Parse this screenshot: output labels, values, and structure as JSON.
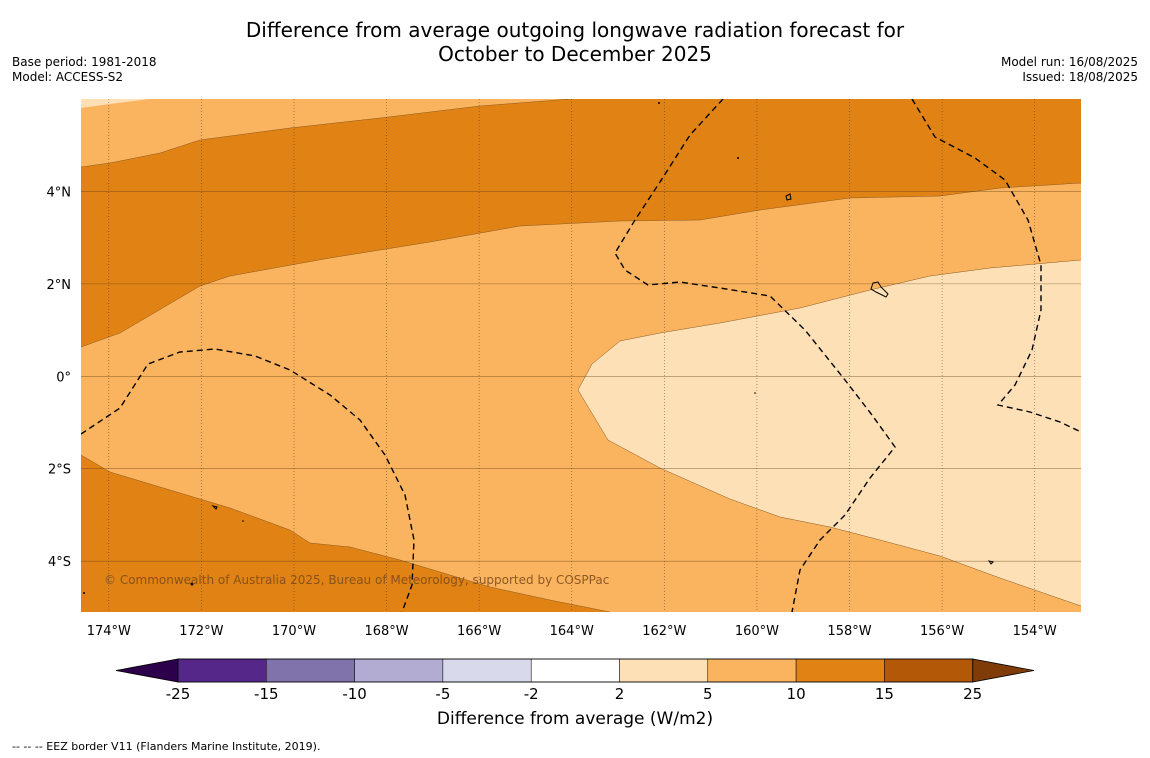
{
  "title": {
    "line1": "Difference from average outgoing longwave radiation forecast for",
    "line2": "October to December 2025"
  },
  "meta_left": {
    "base_period": "Base period: 1981-2018",
    "model": "Model: ACCESS-S2"
  },
  "meta_right": {
    "model_run": "Model run: 16/08/2025",
    "issued": "Issued: 18/08/2025"
  },
  "map": {
    "lon_ticks": [
      {
        "value": -174,
        "label": "174°W"
      },
      {
        "value": -172,
        "label": "172°W"
      },
      {
        "value": -170,
        "label": "170°W"
      },
      {
        "value": -168,
        "label": "168°W"
      },
      {
        "value": -166,
        "label": "166°W"
      },
      {
        "value": -164,
        "label": "164°W"
      },
      {
        "value": -162,
        "label": "162°W"
      },
      {
        "value": -160,
        "label": "160°W"
      },
      {
        "value": -158,
        "label": "158°W"
      },
      {
        "value": -156,
        "label": "156°W"
      },
      {
        "value": -154,
        "label": "154°W"
      }
    ],
    "lat_ticks": [
      {
        "value": 4,
        "label": "4°N"
      },
      {
        "value": 2,
        "label": "2°N"
      },
      {
        "value": 0,
        "label": "0°"
      },
      {
        "value": -2,
        "label": "2°S"
      },
      {
        "value": -4,
        "label": "4°S"
      }
    ],
    "lon_range": [
      -174.6,
      -153.0
    ],
    "lat_range": [
      -5.1,
      6.0
    ],
    "copyright": "© Commonwealth of Australia 2025, Bureau of Meteorology, supported by COSPPac",
    "shading": [
      {
        "band": "5 to 10",
        "color": "#fab35e"
      },
      {
        "band": "10 to 15",
        "color": "#e08214"
      },
      {
        "band": "2 to 5",
        "color": "#fee0b6"
      }
    ]
  },
  "colorbar": {
    "title": "Difference from average (W/m2)",
    "boundaries": [
      "-25",
      "-15",
      "-10",
      "-5",
      "-2",
      "2",
      "5",
      "10",
      "15",
      "25"
    ],
    "colors": [
      "#542788",
      "#8073ac",
      "#b2abd2",
      "#d8daeb",
      "#ffffff",
      "#fee0b6",
      "#fab35e",
      "#e08214",
      "#b35806"
    ],
    "extend_low_color": "#2d004b",
    "extend_high_color": "#7f3b08"
  },
  "footnote": "--  --  -- EEZ border V11 (Flanders Marine Institute, 2019)."
}
